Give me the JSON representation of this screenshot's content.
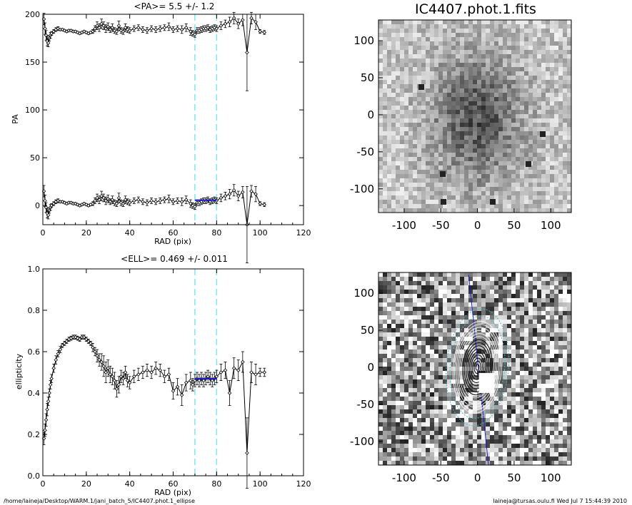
{
  "footer": {
    "path": "/home/laineja/Desktop/WARM.1/jani_batch_5/IC4407.phot.1_ellipse",
    "user_date": "laineja@tursas.oulu.fi  Wed Jul  7 15:44:39 2010"
  },
  "chart_data": [
    {
      "type": "scatter",
      "title": "<PA>=   5.5 +/-   1.2",
      "xlabel": "RAD (pix)",
      "ylabel": "PA",
      "xlim": [
        0,
        120
      ],
      "ylim": [
        -20,
        200
      ],
      "xticks": [
        "0",
        "20",
        "40",
        "60",
        "80",
        "100",
        "120"
      ],
      "yticks": [
        "0",
        "50",
        "100",
        "150",
        "200"
      ],
      "vlines": [
        70,
        80
      ],
      "fit": {
        "x": [
          70,
          80
        ],
        "y": [
          5.5,
          5.5
        ]
      },
      "series": [
        {
          "x": [
            0.5,
            1,
            1.5,
            2,
            2.5,
            3,
            3.5,
            4,
            5,
            6,
            7,
            8,
            9,
            10,
            11,
            12,
            13,
            14,
            15,
            16,
            17,
            18,
            19,
            20,
            21,
            22,
            23,
            24,
            25,
            26,
            27,
            28,
            29,
            30,
            31,
            32,
            33,
            34,
            35,
            36,
            37,
            38,
            39,
            40,
            42,
            44,
            46,
            48,
            50,
            52,
            54,
            56,
            58,
            60,
            62,
            64,
            66,
            68,
            69,
            70,
            71,
            72,
            73,
            74,
            75,
            76,
            77,
            78,
            79,
            80,
            82,
            84,
            86,
            88,
            90,
            92,
            94,
            96,
            98,
            100,
            102
          ],
          "y": [
            15,
            5,
            -2,
            -8,
            -10,
            -5,
            -2,
            0,
            2,
            4,
            5,
            4,
            4,
            3,
            2,
            3,
            3,
            2,
            2,
            1,
            0,
            1,
            2,
            1,
            0,
            1,
            2,
            5,
            8,
            6,
            10,
            8,
            5,
            7,
            4,
            6,
            3,
            2,
            8,
            3,
            2,
            6,
            4,
            3,
            5,
            6,
            4,
            3,
            5,
            4,
            5,
            6,
            7,
            4,
            5,
            4,
            6,
            2,
            0,
            -1,
            3,
            3,
            4,
            5,
            5,
            6,
            4,
            5,
            6,
            5,
            8,
            10,
            12,
            16,
            10,
            14,
            -20,
            15,
            12,
            2,
            1
          ],
          "err": [
            6,
            6,
            5,
            5,
            4,
            3,
            3,
            2,
            2,
            2,
            2,
            1,
            1,
            1,
            1,
            1,
            1,
            1,
            1,
            1,
            1,
            1,
            1,
            1,
            1,
            1,
            2,
            3,
            4,
            4,
            5,
            4,
            4,
            4,
            3,
            4,
            3,
            3,
            5,
            3,
            3,
            4,
            3,
            3,
            3,
            3,
            3,
            3,
            3,
            3,
            3,
            3,
            4,
            3,
            3,
            4,
            4,
            4,
            3,
            3,
            3,
            3,
            3,
            3,
            3,
            3,
            3,
            3,
            3,
            3,
            4,
            4,
            5,
            6,
            5,
            6,
            40,
            6,
            8,
            2,
            2
          ]
        },
        {
          "x": [
            0.5,
            1,
            1.5,
            2,
            2.5,
            3,
            3.5,
            4,
            5,
            6,
            7,
            8,
            9,
            10,
            11,
            12,
            13,
            14,
            15,
            16,
            17,
            18,
            19,
            20,
            21,
            22,
            23,
            24,
            25,
            26,
            27,
            28,
            29,
            30,
            31,
            32,
            33,
            34,
            35,
            36,
            37,
            38,
            39,
            40,
            42,
            44,
            46,
            48,
            50,
            52,
            54,
            56,
            58,
            60,
            62,
            64,
            66,
            68,
            69,
            70,
            71,
            72,
            73,
            74,
            75,
            76,
            77,
            78,
            79,
            80,
            82,
            84,
            86,
            88,
            90,
            92,
            94,
            96,
            98,
            100,
            102
          ],
          "y": [
            195,
            185,
            178,
            172,
            170,
            175,
            178,
            180,
            182,
            184,
            185,
            184,
            184,
            183,
            182,
            183,
            183,
            182,
            182,
            181,
            180,
            181,
            182,
            181,
            180,
            181,
            182,
            185,
            188,
            186,
            190,
            188,
            185,
            187,
            184,
            186,
            183,
            182,
            188,
            183,
            182,
            186,
            184,
            183,
            185,
            186,
            184,
            183,
            185,
            184,
            185,
            186,
            187,
            184,
            185,
            184,
            186,
            182,
            180,
            179,
            183,
            183,
            184,
            185,
            185,
            186,
            184,
            185,
            186,
            185,
            188,
            190,
            192,
            196,
            190,
            194,
            160,
            196,
            192,
            182,
            181
          ],
          "err": [
            6,
            6,
            5,
            5,
            4,
            3,
            3,
            2,
            2,
            2,
            2,
            1,
            1,
            1,
            1,
            1,
            1,
            1,
            1,
            1,
            1,
            1,
            1,
            1,
            1,
            1,
            2,
            3,
            4,
            4,
            5,
            4,
            4,
            4,
            3,
            4,
            3,
            3,
            5,
            3,
            3,
            4,
            3,
            3,
            3,
            3,
            3,
            3,
            3,
            3,
            3,
            3,
            4,
            3,
            3,
            4,
            4,
            4,
            3,
            3,
            3,
            3,
            3,
            3,
            3,
            3,
            3,
            3,
            3,
            3,
            4,
            4,
            5,
            6,
            5,
            6,
            40,
            6,
            8,
            2,
            2
          ]
        }
      ]
    },
    {
      "type": "scatter",
      "title": "<ELL>= 0.469 +/-  0.011",
      "xlabel": "RAD (pix)",
      "ylabel": "ellipticity",
      "xlim": [
        0,
        120
      ],
      "ylim": [
        0,
        1
      ],
      "xticks": [
        "0",
        "20",
        "40",
        "60",
        "80",
        "100",
        "120"
      ],
      "yticks": [
        "0.0",
        "0.2",
        "0.4",
        "0.6",
        "0.8",
        "1.0"
      ],
      "vlines": [
        70,
        80
      ],
      "fit": {
        "x": [
          70,
          80
        ],
        "y": [
          0.469,
          0.469
        ]
      },
      "series": [
        {
          "x": [
            0.5,
            1,
            1.5,
            2,
            2.5,
            3,
            3.5,
            4,
            5,
            6,
            7,
            8,
            9,
            10,
            11,
            12,
            13,
            14,
            15,
            16,
            17,
            18,
            19,
            20,
            21,
            22,
            23,
            24,
            25,
            26,
            27,
            28,
            29,
            30,
            31,
            32,
            33,
            34,
            35,
            36,
            37,
            38,
            39,
            40,
            42,
            44,
            46,
            48,
            50,
            52,
            54,
            56,
            58,
            60,
            62,
            64,
            66,
            68,
            69,
            70,
            71,
            72,
            73,
            74,
            75,
            76,
            77,
            78,
            79,
            80,
            82,
            84,
            86,
            88,
            90,
            92,
            94,
            96,
            98,
            100,
            102
          ],
          "y": [
            0.18,
            0.22,
            0.27,
            0.32,
            0.36,
            0.4,
            0.44,
            0.47,
            0.52,
            0.56,
            0.59,
            0.61,
            0.63,
            0.64,
            0.65,
            0.66,
            0.665,
            0.67,
            0.67,
            0.665,
            0.66,
            0.67,
            0.67,
            0.66,
            0.65,
            0.64,
            0.62,
            0.6,
            0.58,
            0.56,
            0.55,
            0.53,
            0.5,
            0.52,
            0.49,
            0.48,
            0.46,
            0.42,
            0.44,
            0.48,
            0.47,
            0.5,
            0.46,
            0.45,
            0.48,
            0.49,
            0.5,
            0.51,
            0.5,
            0.52,
            0.51,
            0.48,
            0.49,
            0.41,
            0.43,
            0.39,
            0.45,
            0.46,
            0.44,
            0.46,
            0.47,
            0.46,
            0.47,
            0.46,
            0.47,
            0.48,
            0.47,
            0.46,
            0.47,
            0.48,
            0.5,
            0.51,
            0.4,
            0.52,
            0.51,
            0.55,
            0.11,
            0.5,
            0.49,
            0.5,
            0.5
          ],
          "err": [
            0.03,
            0.03,
            0.03,
            0.03,
            0.02,
            0.02,
            0.02,
            0.02,
            0.02,
            0.02,
            0.015,
            0.015,
            0.01,
            0.01,
            0.01,
            0.01,
            0.01,
            0.01,
            0.01,
            0.01,
            0.01,
            0.01,
            0.01,
            0.01,
            0.01,
            0.01,
            0.02,
            0.02,
            0.03,
            0.03,
            0.04,
            0.05,
            0.05,
            0.04,
            0.04,
            0.04,
            0.04,
            0.04,
            0.04,
            0.03,
            0.03,
            0.03,
            0.03,
            0.03,
            0.03,
            0.03,
            0.03,
            0.03,
            0.03,
            0.03,
            0.03,
            0.03,
            0.03,
            0.04,
            0.04,
            0.05,
            0.04,
            0.04,
            0.03,
            0.03,
            0.03,
            0.03,
            0.03,
            0.03,
            0.03,
            0.03,
            0.03,
            0.03,
            0.03,
            0.03,
            0.04,
            0.04,
            0.06,
            0.05,
            0.05,
            0.05,
            0.17,
            0.05,
            0.05,
            0.02,
            0.02
          ]
        }
      ]
    },
    {
      "type": "heatmap",
      "title": "IC4407.phot.1.fits",
      "xlim": [
        -135,
        128
      ],
      "ylim": [
        -132,
        128
      ],
      "xticks": [
        "-100",
        "-50",
        "0",
        "50",
        "100"
      ],
      "yticks": [
        "-100",
        "-50",
        "0",
        "50",
        "100"
      ]
    },
    {
      "type": "heatmap",
      "title": "",
      "xlim": [
        -135,
        128
      ],
      "ylim": [
        -132,
        128
      ],
      "xticks": [
        "-100",
        "-50",
        "0",
        "50",
        "100"
      ],
      "yticks": [
        "-100",
        "-50",
        "0",
        "50",
        "100"
      ]
    }
  ],
  "colors": {
    "vline": "#7fe6f2",
    "fit": "#1a1ad0",
    "contour": "#ffffff",
    "model_contour": "#49b8c8",
    "markers": "#000000"
  }
}
